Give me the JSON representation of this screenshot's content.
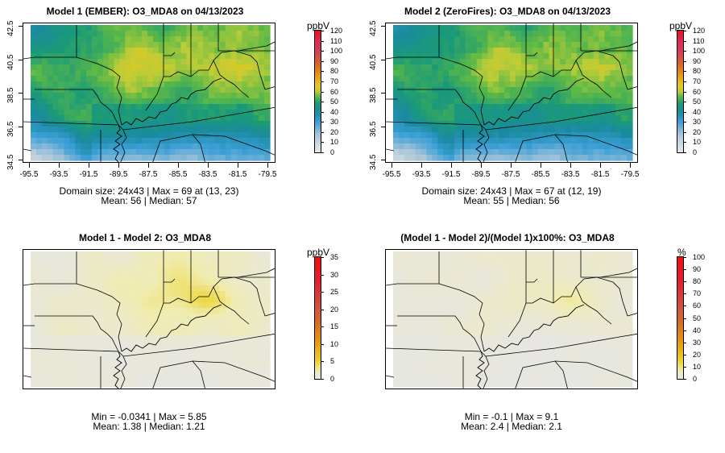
{
  "chart_data": [
    {
      "type": "heatmap",
      "title": "Model 1 (EMBER): O3_MDA8 on 04/13/2023",
      "unit": "ppbV",
      "grid_size": "24x43",
      "colorbar": {
        "min": 0,
        "max": 120,
        "ticks": [
          0,
          10,
          20,
          30,
          40,
          50,
          60,
          70,
          80,
          90,
          100,
          110,
          120
        ],
        "palette": "rainbow"
      },
      "x_ticks": [
        "-95.5",
        "-93.5",
        "-91.5",
        "-89.5",
        "-87.5",
        "-85.5",
        "-83.5",
        "-81.5",
        "-79.5"
      ],
      "y_ticks": [
        "34.5",
        "36.5",
        "38.5",
        "40.5",
        "42.5"
      ],
      "xlim": [
        -95.5,
        -79.5
      ],
      "ylim": [
        34.5,
        42.5
      ],
      "domain_text": "Domain size: 24x43 | Max = 69 at (13, 23)",
      "mean_text": "Mean: 56 |  Median: 57",
      "stats": {
        "max": 69,
        "max_at": [
          13,
          23
        ],
        "mean": 56,
        "median": 57
      }
    },
    {
      "type": "heatmap",
      "title": "Model 2 (ZeroFires): O3_MDA8 on 04/13/2023",
      "unit": "ppbV",
      "grid_size": "24x43",
      "colorbar": {
        "min": 0,
        "max": 120,
        "ticks": [
          0,
          10,
          20,
          30,
          40,
          50,
          60,
          70,
          80,
          90,
          100,
          110,
          120
        ],
        "palette": "rainbow"
      },
      "x_ticks": [
        "-95.5",
        "-93.5",
        "-91.5",
        "-89.5",
        "-87.5",
        "-85.5",
        "-83.5",
        "-81.5",
        "-79.5"
      ],
      "y_ticks": [
        "34.5",
        "36.5",
        "38.5",
        "40.5",
        "42.5"
      ],
      "xlim": [
        -95.5,
        -79.5
      ],
      "ylim": [
        34.5,
        42.5
      ],
      "domain_text": "Domain size: 24x43 | Max = 67 at (12, 19)",
      "mean_text": "Mean: 55 |  Median: 56",
      "stats": {
        "max": 67,
        "max_at": [
          12,
          19
        ],
        "mean": 55,
        "median": 56
      }
    },
    {
      "type": "heatmap",
      "title": "Model 1 - Model 2: O3_MDA8",
      "unit": "ppbV",
      "colorbar": {
        "min": 0,
        "max": 35,
        "ticks": [
          0,
          5,
          10,
          15,
          20,
          25,
          30,
          35
        ],
        "palette": "heat"
      },
      "domain_text": "Min = -0.0341 | Max = 5.85",
      "mean_text": "Mean: 1.38 |  Median: 1.21",
      "stats": {
        "min": -0.0341,
        "max": 5.85,
        "mean": 1.38,
        "median": 1.21
      }
    },
    {
      "type": "heatmap",
      "title": "(Model 1 - Model 2)/(Model 1)x100%: O3_MDA8",
      "unit": "%",
      "colorbar": {
        "min": 0,
        "max": 100,
        "ticks": [
          0,
          10,
          20,
          30,
          40,
          50,
          60,
          70,
          80,
          90,
          100
        ],
        "palette": "heat"
      },
      "domain_text": "Min = -0.1 | Max = 9.1",
      "mean_text": "Mean: 2.4 |  Median: 2.1",
      "stats": {
        "min": -0.1,
        "max": 9.1,
        "mean": 2.4,
        "median": 2.1
      }
    }
  ]
}
